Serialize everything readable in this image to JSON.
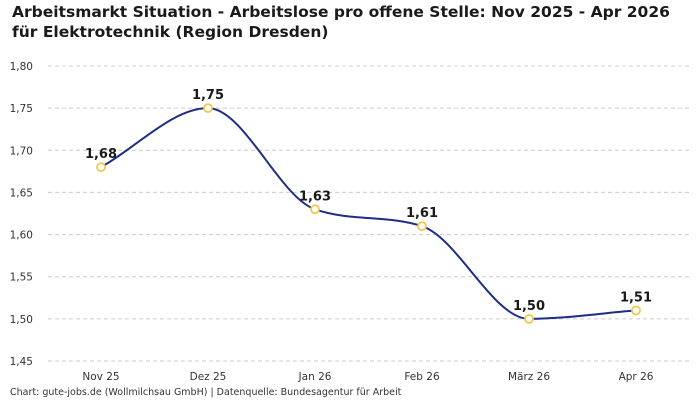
{
  "colors": {
    "line": "#1f2d86",
    "marker_stroke": "#f2c94c",
    "marker_fill": "#ffffff",
    "grid": "#cccccc"
  },
  "chart_data": {
    "type": "line",
    "title": "Arbeitsmarkt Situation - Arbeitslose pro offene Stelle: Nov 2025 - Apr 2026 für Elektrotechnik (Region Dresden)",
    "xlabel": "",
    "ylabel": "",
    "categories": [
      "Nov 25",
      "Dez 25",
      "Jan 26",
      "Feb 26",
      "März 26",
      "Apr 26"
    ],
    "values": [
      1.68,
      1.75,
      1.63,
      1.61,
      1.5,
      1.51
    ],
    "data_labels": [
      "1,68",
      "1,75",
      "1,63",
      "1,61",
      "1,50",
      "1,51"
    ],
    "ylim": [
      1.45,
      1.8
    ],
    "yticks": [
      1.45,
      1.5,
      1.55,
      1.6,
      1.65,
      1.7,
      1.75,
      1.8
    ],
    "ytick_labels": [
      "1,45",
      "1,50",
      "1,55",
      "1,60",
      "1,65",
      "1,70",
      "1,75",
      "1,80"
    ],
    "grid": true,
    "legend": "none",
    "smooth": true
  },
  "footer": {
    "source": "Chart: gute-jobs.de (Wollmilchsau GmbH) | Datenquelle: Bundesagentur für Arbeit"
  }
}
